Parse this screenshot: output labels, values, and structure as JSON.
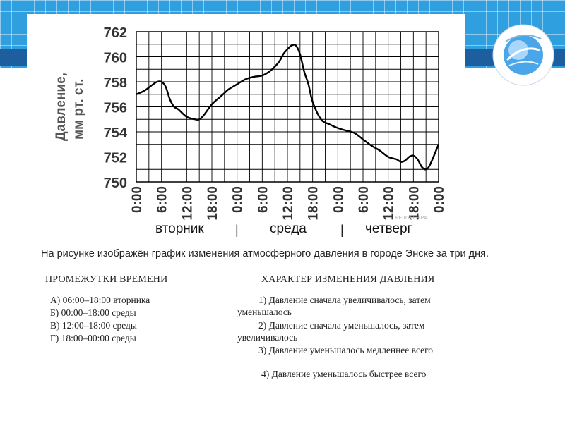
{
  "chart_data": {
    "type": "line",
    "title": "",
    "ylabel": "Давление, мм рт. ст.",
    "xlabel": "",
    "ylim": [
      750,
      762
    ],
    "yticks": [
      750,
      752,
      754,
      756,
      758,
      760,
      762
    ],
    "xticks": [
      "0:00",
      "6:00",
      "12:00",
      "18:00",
      "0:00",
      "6:00",
      "12:00",
      "18:00",
      "0:00",
      "6:00",
      "12:00",
      "18:00",
      "0:00"
    ],
    "days": [
      "вторник",
      "среда",
      "четверг"
    ],
    "grid": true,
    "series": [
      {
        "x": [
          0,
          2,
          4,
          5,
          6,
          7,
          8,
          9,
          10,
          12,
          14,
          15,
          16,
          18,
          20,
          21,
          22,
          24,
          26,
          28,
          30,
          32,
          34,
          35,
          36,
          37,
          38,
          39,
          40,
          41,
          42,
          44,
          46,
          48,
          50,
          52,
          54,
          56,
          58,
          60,
          62,
          63,
          64,
          65,
          66,
          67,
          68,
          69,
          70,
          72
        ],
        "values": [
          757.0,
          757.3,
          757.8,
          758.0,
          758.0,
          757.6,
          756.6,
          756.0,
          755.8,
          755.2,
          755.0,
          755.0,
          755.3,
          756.2,
          756.8,
          757.1,
          757.4,
          757.8,
          758.2,
          758.4,
          758.5,
          758.9,
          759.6,
          760.2,
          760.6,
          760.9,
          760.9,
          760.2,
          758.8,
          757.8,
          756.4,
          755.0,
          754.6,
          754.3,
          754.1,
          753.9,
          753.4,
          752.9,
          752.5,
          752.0,
          751.8,
          751.6,
          751.7,
          752.0,
          752.1,
          751.8,
          751.2,
          751.0,
          751.4,
          753.0
        ]
      }
    ]
  },
  "watermark": "РЕШУЕГЭ.РФ",
  "question": "На рисунке изображён график изменения атмосферного давления в городе Энске за три дня.",
  "left_column": {
    "header": "ПРОМЕЖУТКИ ВРЕМЕНИ",
    "items": [
      "А) 06:00–18:00 вторника",
      "Б) 00:00–18:00 среды",
      "В) 12:00–18:00 среды",
      "Г) 18:00–00:00 среды"
    ]
  },
  "right_column": {
    "header": "ХАРАКТЕР ИЗМЕНЕНИЯ ДАВЛЕНИЯ",
    "items": [
      {
        "line1": "1) Давление сначала увеличивалось, затем",
        "line2": "уменьшалось"
      },
      {
        "line1": "2) Давление сначала уменьшалось, затем",
        "line2": "увеличивалось"
      },
      {
        "line1": "3) Давление уменьшалось медленнее всего",
        "line2": ""
      },
      {
        "line1": "4) Давление уменьшалось быстрее всего",
        "line2": ""
      }
    ]
  },
  "colors": {
    "band": "#2f9fe0",
    "band_bar": "#1d5f9e",
    "curve": "#000000",
    "grid": "#000000"
  }
}
